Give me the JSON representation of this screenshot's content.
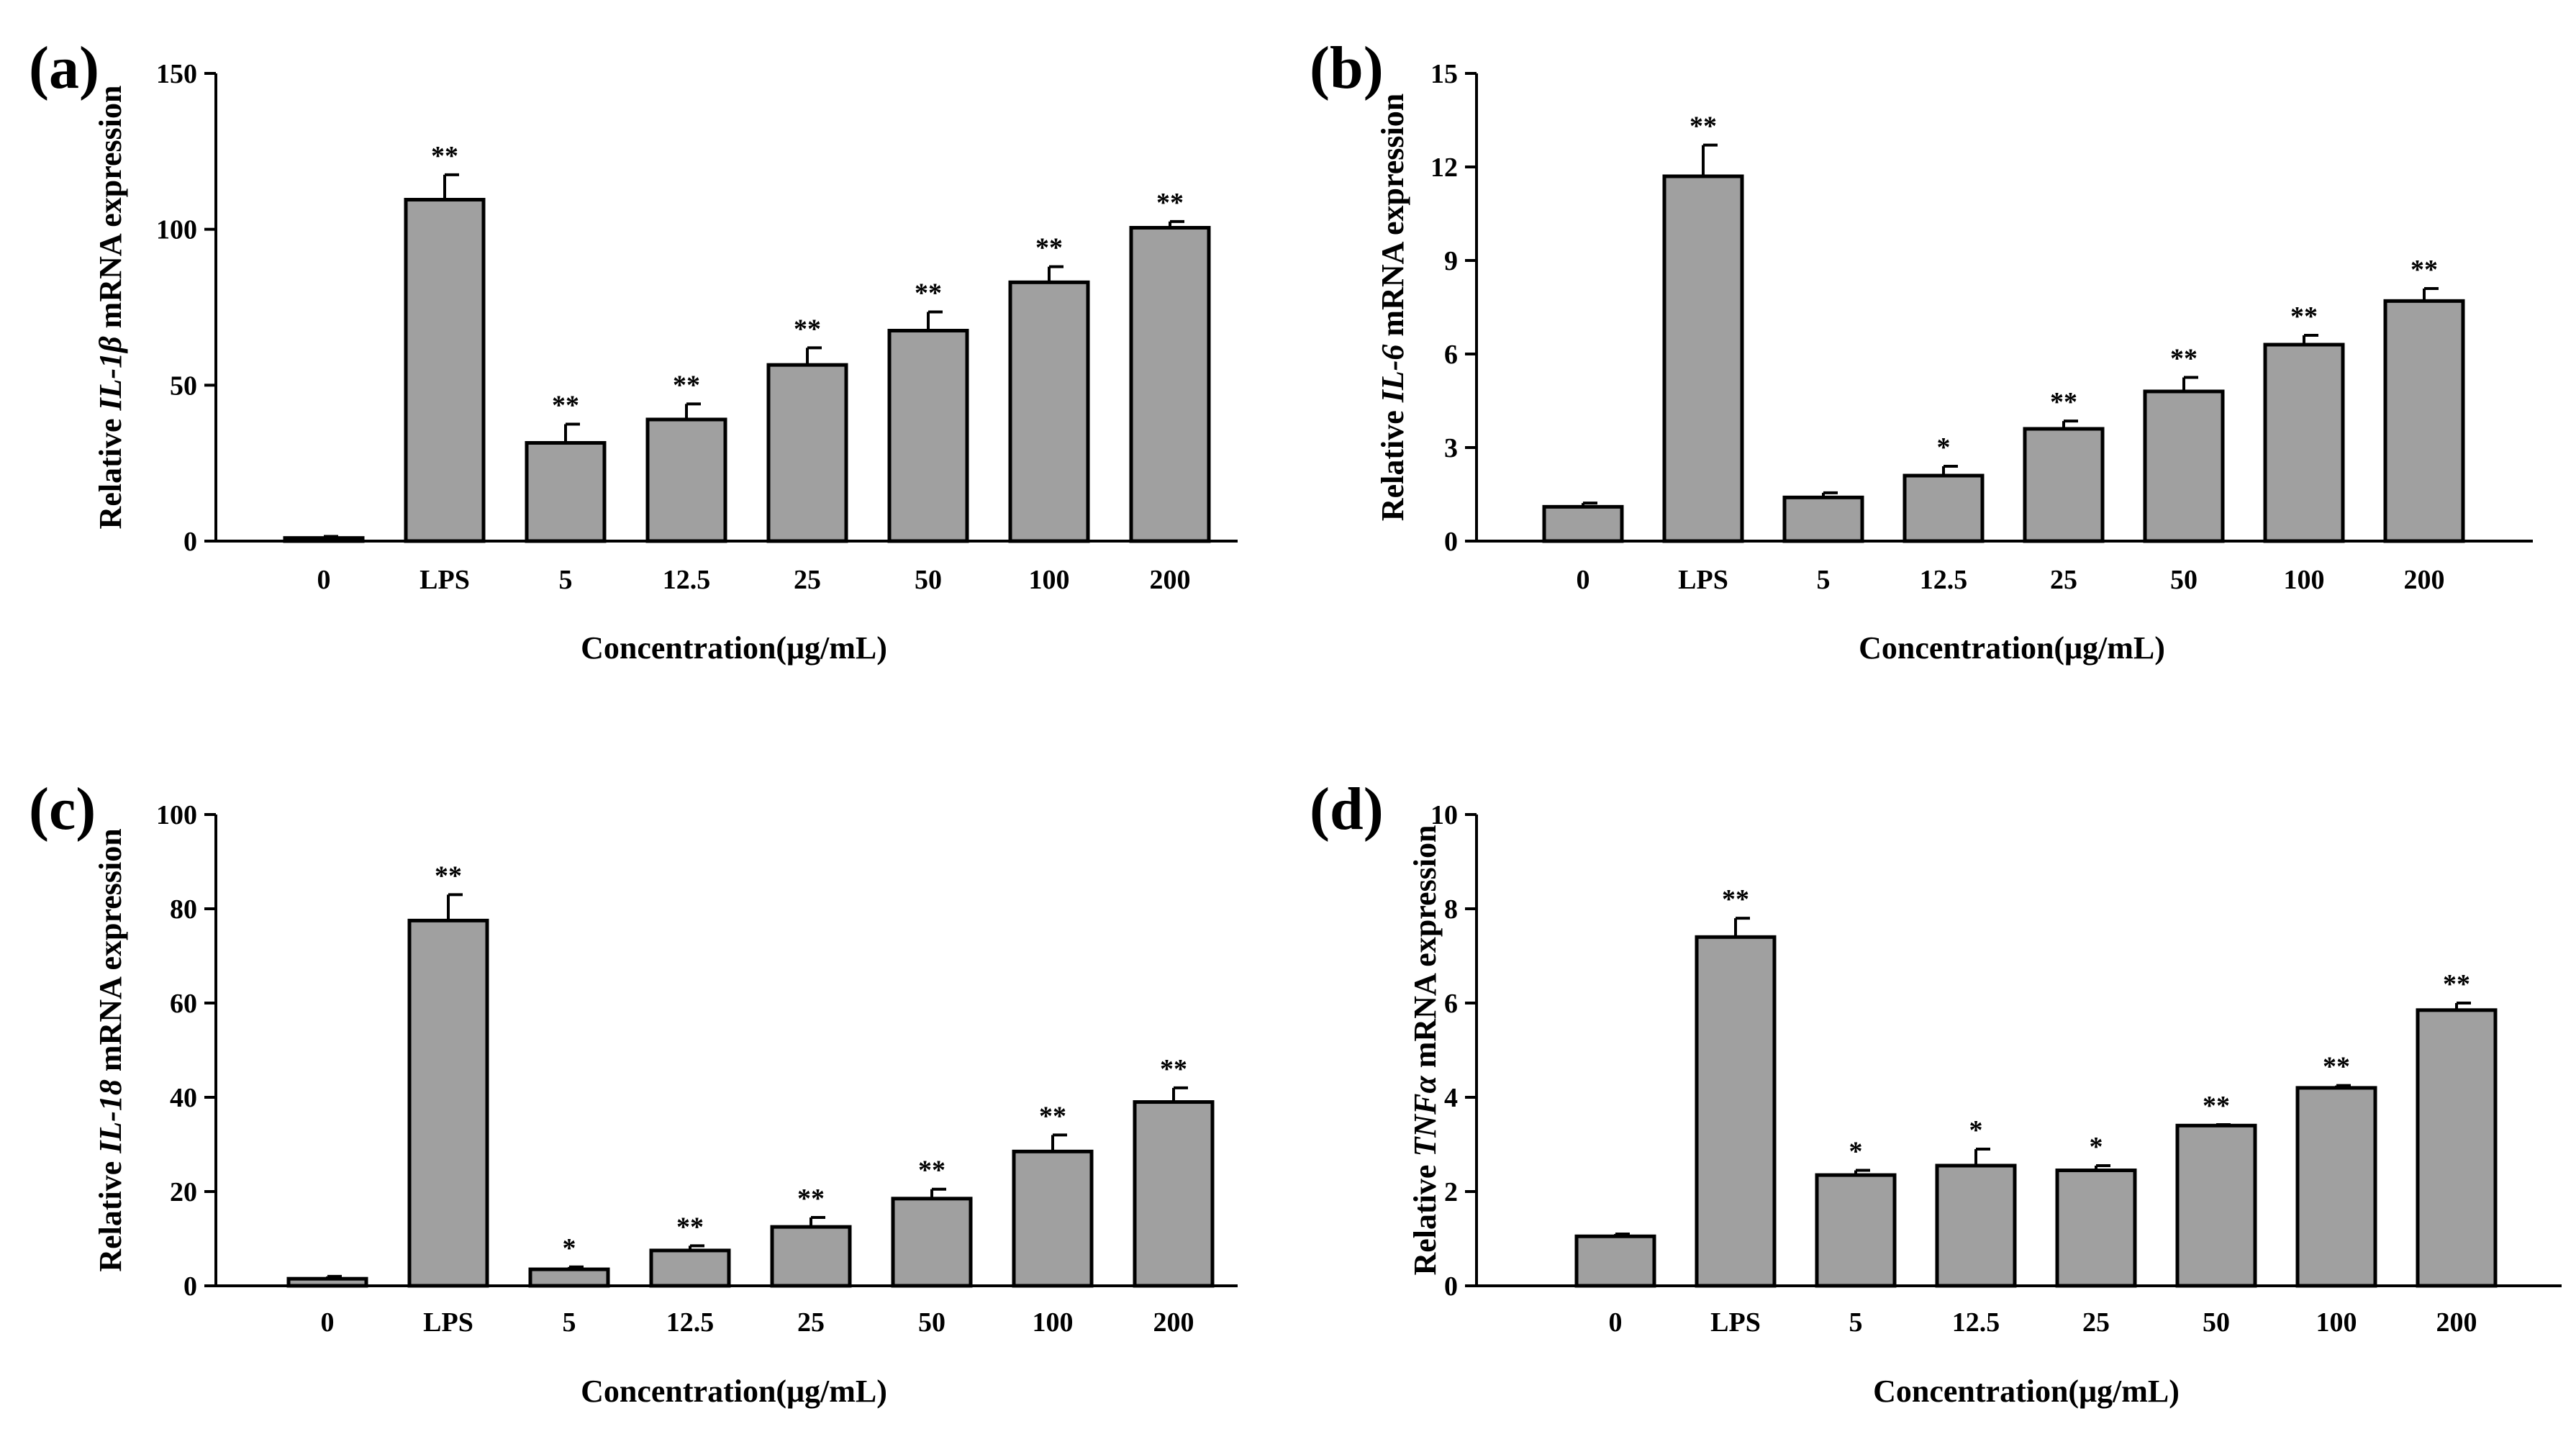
{
  "figure": {
    "background": "#ffffff",
    "bar_fill": "#a0a0a0",
    "bar_stroke": "#000000"
  },
  "chart_data": [
    {
      "type": "bar",
      "panel_label": "(a)",
      "categories": [
        "0",
        "LPS",
        "5",
        "12.5",
        "25",
        "50",
        "100",
        "200"
      ],
      "values": [
        1,
        109.5,
        31.5,
        39,
        56.5,
        67.5,
        83,
        100.5
      ],
      "errors": [
        0.5,
        8,
        6,
        5,
        5.5,
        6,
        5,
        2
      ],
      "significance": [
        "",
        "**",
        "**",
        "**",
        "**",
        "**",
        "**",
        "**"
      ],
      "ylabel": {
        "prefix": "Relative ",
        "gene": "IL-1β",
        "suffix": " mRNA expression"
      },
      "xlabel": "Concentration(μg/mL)",
      "yticks": [
        0,
        50,
        100,
        150
      ],
      "ylim": [
        0,
        150
      ]
    },
    {
      "type": "bar",
      "panel_label": "(b)",
      "categories": [
        "0",
        "LPS",
        "5",
        "12.5",
        "25",
        "50",
        "100",
        "200"
      ],
      "values": [
        1.1,
        11.7,
        1.4,
        2.1,
        3.6,
        4.8,
        6.3,
        7.7
      ],
      "errors": [
        0.12,
        1.0,
        0.15,
        0.3,
        0.25,
        0.45,
        0.3,
        0.4
      ],
      "significance": [
        "",
        "**",
        "",
        "*",
        "**",
        "**",
        "**",
        "**"
      ],
      "ylabel": {
        "prefix": "Relative ",
        "gene": "IL-6",
        "suffix": " mRNA expression"
      },
      "xlabel": "Concentration(μg/mL)",
      "yticks": [
        0,
        3,
        6,
        9,
        12,
        15
      ],
      "ylim": [
        0,
        15
      ]
    },
    {
      "type": "bar",
      "panel_label": "(c)",
      "categories": [
        "0",
        "LPS",
        "5",
        "12.5",
        "25",
        "50",
        "100",
        "200"
      ],
      "values": [
        1.5,
        77.5,
        3.5,
        7.5,
        12.5,
        18.5,
        28.5,
        39
      ],
      "errors": [
        0.5,
        5.5,
        0.5,
        1,
        2,
        2,
        3.5,
        3
      ],
      "significance": [
        "",
        "**",
        "*",
        "**",
        "**",
        "**",
        "**",
        "**"
      ],
      "ylabel": {
        "prefix": "Relative ",
        "gene": "IL-18",
        "suffix": " mRNA expression"
      },
      "xlabel": "Concentration(μg/mL)",
      "yticks": [
        0,
        20,
        40,
        60,
        80,
        100
      ],
      "ylim": [
        0,
        100
      ]
    },
    {
      "type": "bar",
      "panel_label": "(d)",
      "categories": [
        "0",
        "LPS",
        "5",
        "12.5",
        "25",
        "50",
        "100",
        "200"
      ],
      "values": [
        1.05,
        7.4,
        2.35,
        2.55,
        2.45,
        3.4,
        4.2,
        5.85
      ],
      "errors": [
        0.05,
        0.4,
        0.1,
        0.35,
        0.1,
        0.02,
        0.05,
        0.15
      ],
      "significance": [
        "",
        "**",
        "*",
        "*",
        "*",
        "**",
        "**",
        "**"
      ],
      "ylabel": {
        "prefix": "Relative ",
        "gene": "TNFα",
        "suffix": " mRNA expression"
      },
      "xlabel": "Concentration(μg/mL)",
      "yticks": [
        0,
        2,
        4,
        6,
        8,
        10
      ],
      "ylim": [
        0,
        10
      ]
    }
  ]
}
